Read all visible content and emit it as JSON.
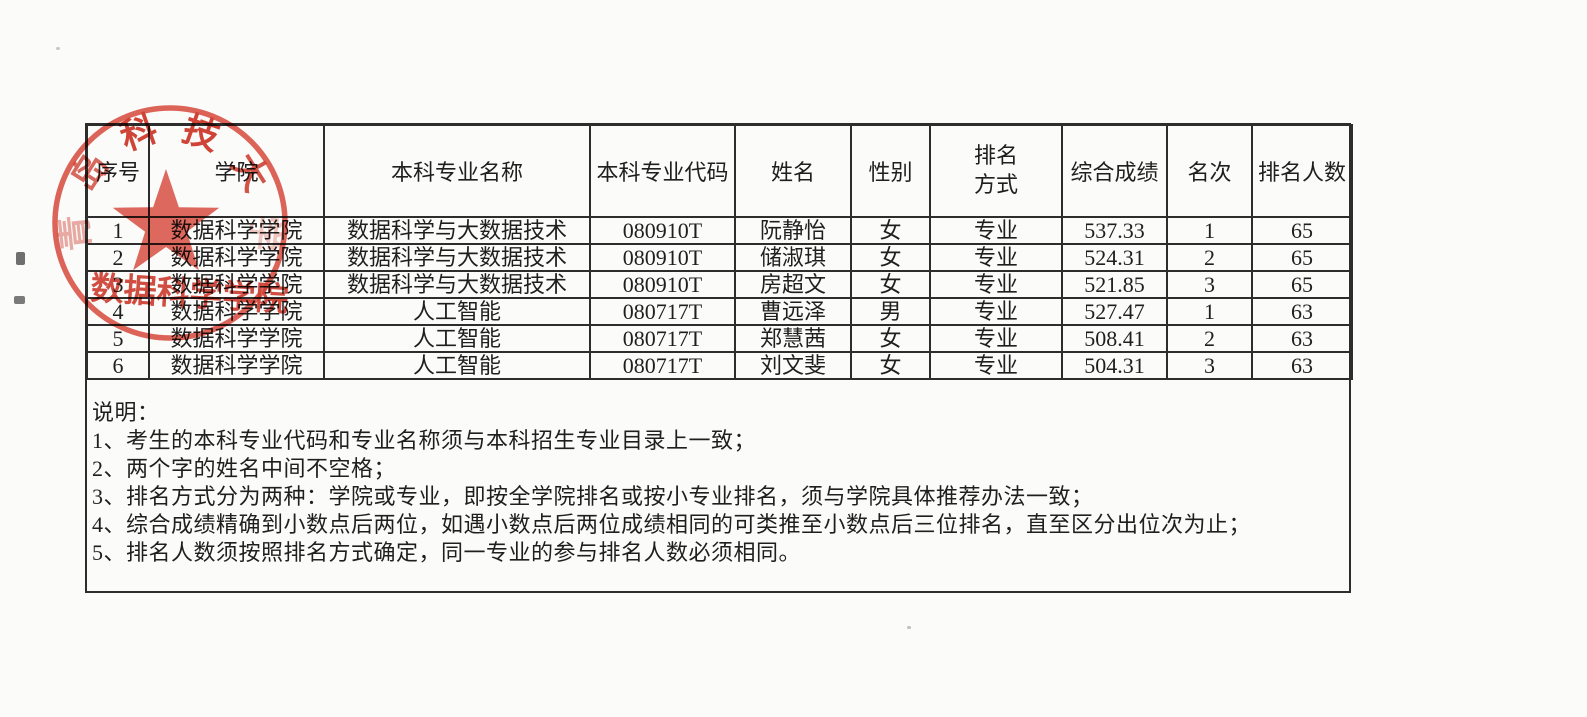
{
  "table": {
    "headers": {
      "no": "序号",
      "college": "学院",
      "major": "本科专业名称",
      "code": "本科专业代码",
      "name": "姓名",
      "gender": "性别",
      "method": "排名方式",
      "score": "综合成绩",
      "rank": "名次",
      "total": "排名人数"
    },
    "rows": [
      {
        "no": "1",
        "college": "数据科学学院",
        "major": "数据科学与大数据技术",
        "code": "080910T",
        "name": "阮静怡",
        "gender": "女",
        "method": "专业",
        "score": "537.33",
        "rank": "1",
        "total": "65"
      },
      {
        "no": "2",
        "college": "数据科学学院",
        "major": "数据科学与大数据技术",
        "code": "080910T",
        "name": "储淑琪",
        "gender": "女",
        "method": "专业",
        "score": "524.31",
        "rank": "2",
        "total": "65"
      },
      {
        "no": "3",
        "college": "数据科学学院",
        "major": "数据科学与大数据技术",
        "code": "080910T",
        "name": "房超文",
        "gender": "女",
        "method": "专业",
        "score": "521.85",
        "rank": "3",
        "total": "65"
      },
      {
        "no": "4",
        "college": "数据科学学院",
        "major": "人工智能",
        "code": "080717T",
        "name": "曹远泽",
        "gender": "男",
        "method": "专业",
        "score": "527.47",
        "rank": "1",
        "total": "63"
      },
      {
        "no": "5",
        "college": "数据科学学院",
        "major": "人工智能",
        "code": "080717T",
        "name": "郑慧茜",
        "gender": "女",
        "method": "专业",
        "score": "508.41",
        "rank": "2",
        "total": "63"
      },
      {
        "no": "6",
        "college": "数据科学学院",
        "major": "人工智能",
        "code": "080717T",
        "name": "刘文斐",
        "gender": "女",
        "method": "专业",
        "score": "504.31",
        "rank": "3",
        "total": "63"
      }
    ]
  },
  "notes": {
    "title": "说明：",
    "items": [
      "1、考生的本科专业代码和专业名称须与本科招生专业目录上一致；",
      "2、两个字的姓名中间不空格；",
      "3、排名方式分为两种：学院或专业，即按全学院排名或按小专业排名，须与学院具体推荐办法一致；",
      "4、综合成绩精确到小数点后两位，如遇小数点后两位成绩相同的可类推至小数点后三位排名，直至区分出位次为止；",
      "5、排名人数须按照排名方式确定，同一专业的参与排名人数必须相同。"
    ]
  },
  "stamp": {
    "arc_text": "青岛科技大学",
    "bottom_text": "数据科学学院",
    "ring_color": "#d8392b",
    "star_color": "#d63427",
    "text_color": "#cf3526"
  }
}
